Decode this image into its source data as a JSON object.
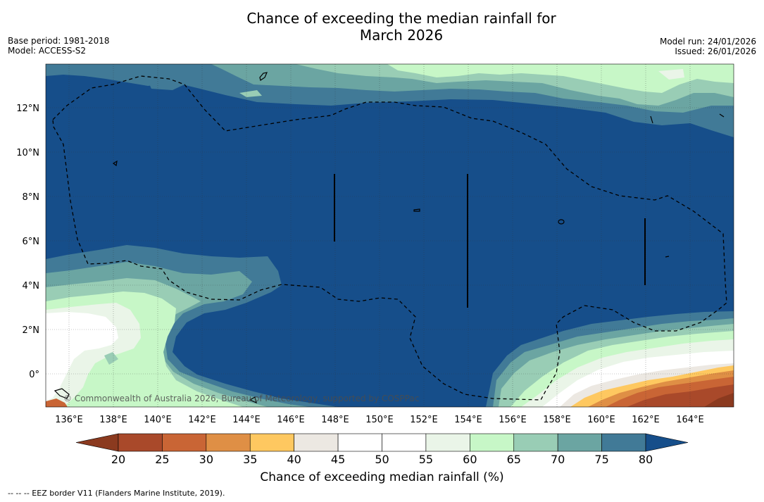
{
  "title_line1": "Chance of exceeding the median rainfall for",
  "title_line2": "March 2026",
  "meta_left": {
    "base_period": "Base period: 1981-2018",
    "model": "Model: ACCESS-S2"
  },
  "meta_right": {
    "model_run": "Model run: 24/01/2026",
    "issued": "Issued: 26/01/2026"
  },
  "copyright": "© Commonwealth of Australia 2026, Bureau of Meteorology, supported by COSPPac",
  "x_ticks": [
    "136°E",
    "138°E",
    "140°E",
    "142°E",
    "144°E",
    "146°E",
    "148°E",
    "150°E",
    "152°E",
    "154°E",
    "156°E",
    "158°E",
    "160°E",
    "162°E",
    "164°E"
  ],
  "y_ticks": [
    "12°N",
    "10°N",
    "8°N",
    "6°N",
    "4°N",
    "2°N",
    "0°"
  ],
  "colorbar": {
    "label": "Chance of exceeding median rainfall (%)",
    "ticks": [
      "20",
      "25",
      "30",
      "35",
      "40",
      "45",
      "50",
      "55",
      "60",
      "65",
      "70",
      "75",
      "80"
    ],
    "colors": [
      "#8b3a1f",
      "#a9492a",
      "#c96535",
      "#df8f45",
      "#fec860",
      "#ece8e2",
      "#ffffff",
      "#ffffff",
      "#eaf5e8",
      "#c7f7c7",
      "#99cdb5",
      "#6ba5a2",
      "#417a97",
      "#164e8a"
    ]
  },
  "footer": "--  --  -- EEZ border V11 (Flanders Marine Institute, 2019)."
}
